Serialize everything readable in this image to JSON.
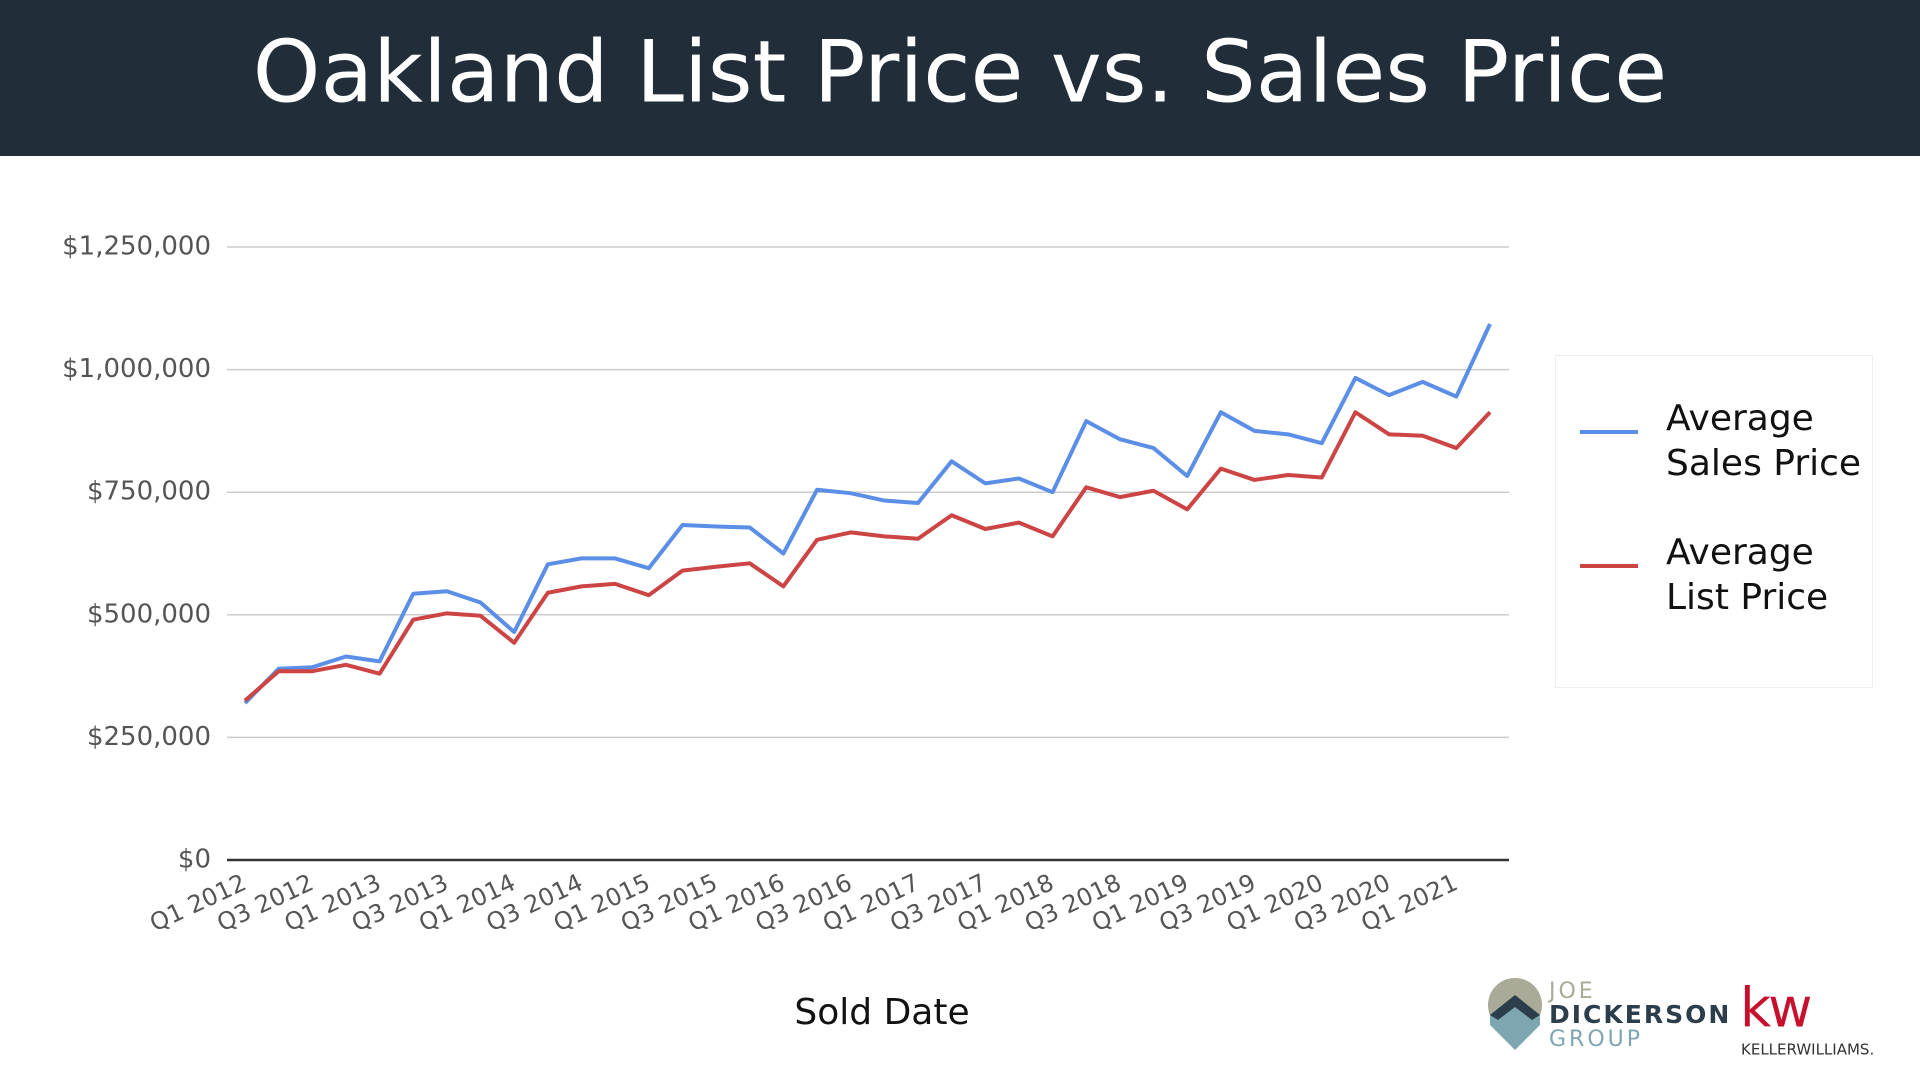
{
  "chart_data": {
    "type": "line",
    "title": "Oakland List Price vs. Sales Price",
    "x_label": "Sold Date",
    "categories": [
      "Q1 2012",
      null,
      "Q3 2012",
      null,
      "Q1 2013",
      null,
      "Q3 2013",
      null,
      "Q1 2014",
      null,
      "Q3 2014",
      null,
      "Q1 2015",
      null,
      "Q3 2015",
      null,
      "Q1 2016",
      null,
      "Q3 2016",
      null,
      "Q1 2017",
      null,
      "Q3 2017",
      null,
      "Q1 2018",
      null,
      "Q3 2018",
      null,
      "Q1 2019",
      null,
      "Q3 2019",
      null,
      "Q1 2020",
      null,
      "Q3 2020",
      null,
      "Q1 2021",
      null
    ],
    "series": [
      {
        "name": "Average Sales Price",
        "color": "#5b8ee6",
        "values": [
          320000,
          390000,
          393000,
          415000,
          405000,
          543000,
          548000,
          525000,
          465000,
          603000,
          615000,
          615000,
          595000,
          683000,
          680000,
          678000,
          625000,
          755000,
          748000,
          733000,
          728000,
          813000,
          768000,
          778000,
          750000,
          895000,
          858000,
          840000,
          783000,
          913000,
          875000,
          868000,
          850000,
          983000,
          948000,
          975000,
          945000,
          1093000
        ]
      },
      {
        "name": "Average List Price",
        "color": "#cc4444",
        "values": [
          325000,
          385000,
          385000,
          398000,
          380000,
          490000,
          503000,
          498000,
          443000,
          545000,
          558000,
          563000,
          540000,
          590000,
          598000,
          605000,
          558000,
          653000,
          668000,
          660000,
          655000,
          703000,
          675000,
          688000,
          660000,
          760000,
          740000,
          753000,
          715000,
          798000,
          775000,
          785000,
          780000,
          913000,
          868000,
          865000,
          840000,
          913000
        ]
      }
    ],
    "ylim": [
      0,
      1250000
    ],
    "yticks": [
      {
        "value": 0,
        "label": "$0"
      },
      {
        "value": 250000,
        "label": "$250,000"
      },
      {
        "value": 500000,
        "label": "$500,000"
      },
      {
        "value": 750000,
        "label": "$750,000"
      },
      {
        "value": 1000000,
        "label": "$1,000,000"
      },
      {
        "value": 1250000,
        "label": "$1,250,000"
      }
    ],
    "grid": true,
    "legend": "right"
  },
  "logos": {
    "joe": "JOE",
    "dickerson": "DICKERSON",
    "group": "GROUP",
    "kw": "kw",
    "keller": "KELLERWILLIAMS."
  }
}
